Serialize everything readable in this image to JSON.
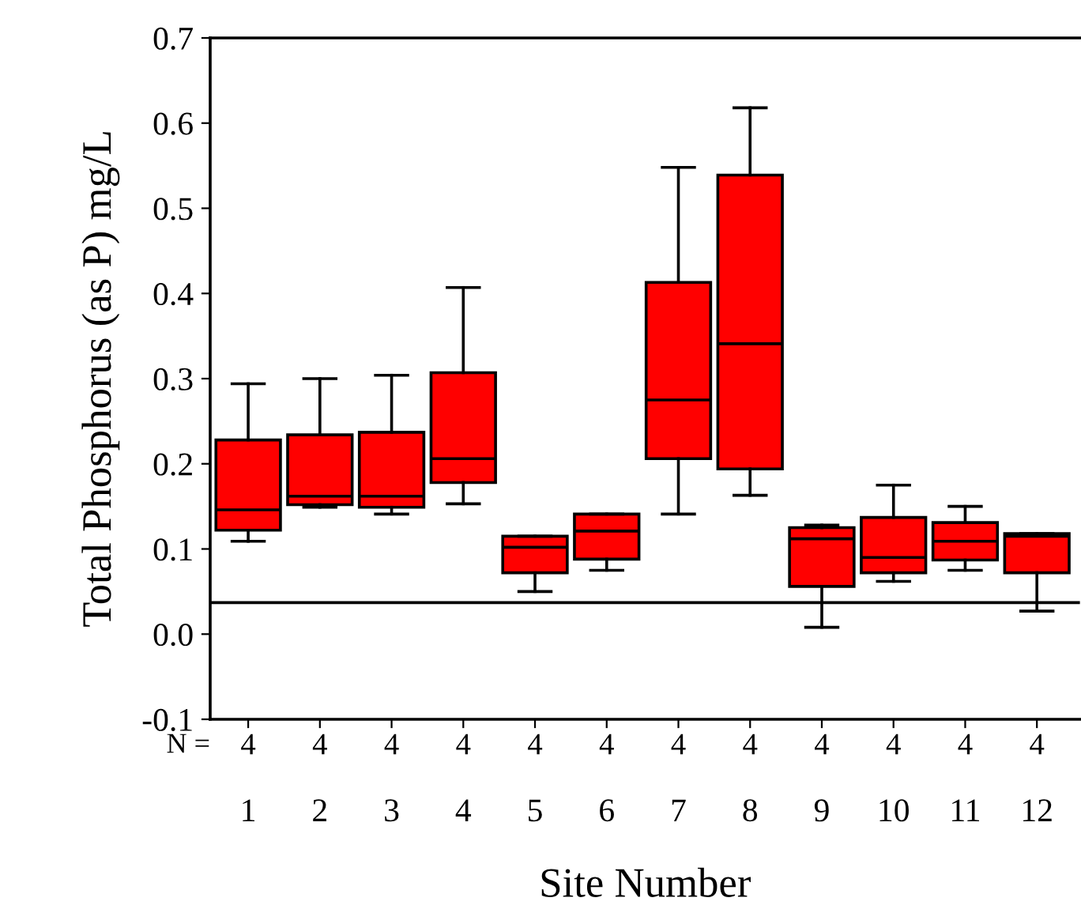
{
  "chart_data": {
    "type": "box",
    "xlabel": "Site Number",
    "ylabel": "Total Phosphorus (as P) mg/L",
    "categories": [
      "1",
      "2",
      "3",
      "4",
      "5",
      "6",
      "7",
      "8",
      "9",
      "10",
      "11",
      "12"
    ],
    "series": [
      {
        "color": "#ff0000",
        "boxes": [
          {
            "low": 0.109,
            "q1": 0.122,
            "median": 0.146,
            "q3": 0.228,
            "high": 0.294
          },
          {
            "low": 0.149,
            "q1": 0.152,
            "median": 0.162,
            "q3": 0.234,
            "high": 0.3
          },
          {
            "low": 0.141,
            "q1": 0.149,
            "median": 0.162,
            "q3": 0.237,
            "high": 0.304
          },
          {
            "low": 0.153,
            "q1": 0.178,
            "median": 0.206,
            "q3": 0.307,
            "high": 0.407
          },
          {
            "low": 0.05,
            "q1": 0.072,
            "median": 0.102,
            "q3": 0.115,
            "high": 0.115
          },
          {
            "low": 0.075,
            "q1": 0.088,
            "median": 0.121,
            "q3": 0.141,
            "high": 0.141
          },
          {
            "low": 0.141,
            "q1": 0.206,
            "median": 0.275,
            "q3": 0.413,
            "high": 0.548
          },
          {
            "low": 0.163,
            "q1": 0.194,
            "median": 0.341,
            "q3": 0.539,
            "high": 0.618
          },
          {
            "low": 0.008,
            "q1": 0.056,
            "median": 0.112,
            "q3": 0.125,
            "high": 0.128
          },
          {
            "low": 0.062,
            "q1": 0.072,
            "median": 0.09,
            "q3": 0.137,
            "high": 0.175
          },
          {
            "low": 0.075,
            "q1": 0.087,
            "median": 0.109,
            "q3": 0.131,
            "high": 0.15
          },
          {
            "low": 0.027,
            "q1": 0.072,
            "median": 0.115,
            "q3": 0.118,
            "high": 0.118
          }
        ]
      }
    ],
    "ylim": [
      -0.1,
      0.7
    ],
    "yticks": [
      -0.1,
      {
        "value": 0,
        "label": "0.0"
      },
      0.1,
      0.2,
      0.3,
      0.4,
      0.5,
      0.6,
      0.7
    ],
    "ref_lines": [
      {
        "axis": "y",
        "value": 0.037,
        "color": "#000000"
      }
    ],
    "annotations": [
      "N =",
      "4",
      "4",
      "4",
      "4",
      "4",
      "4",
      "4",
      "4",
      "4",
      "4",
      "4",
      "4"
    ],
    "grid": false
  }
}
